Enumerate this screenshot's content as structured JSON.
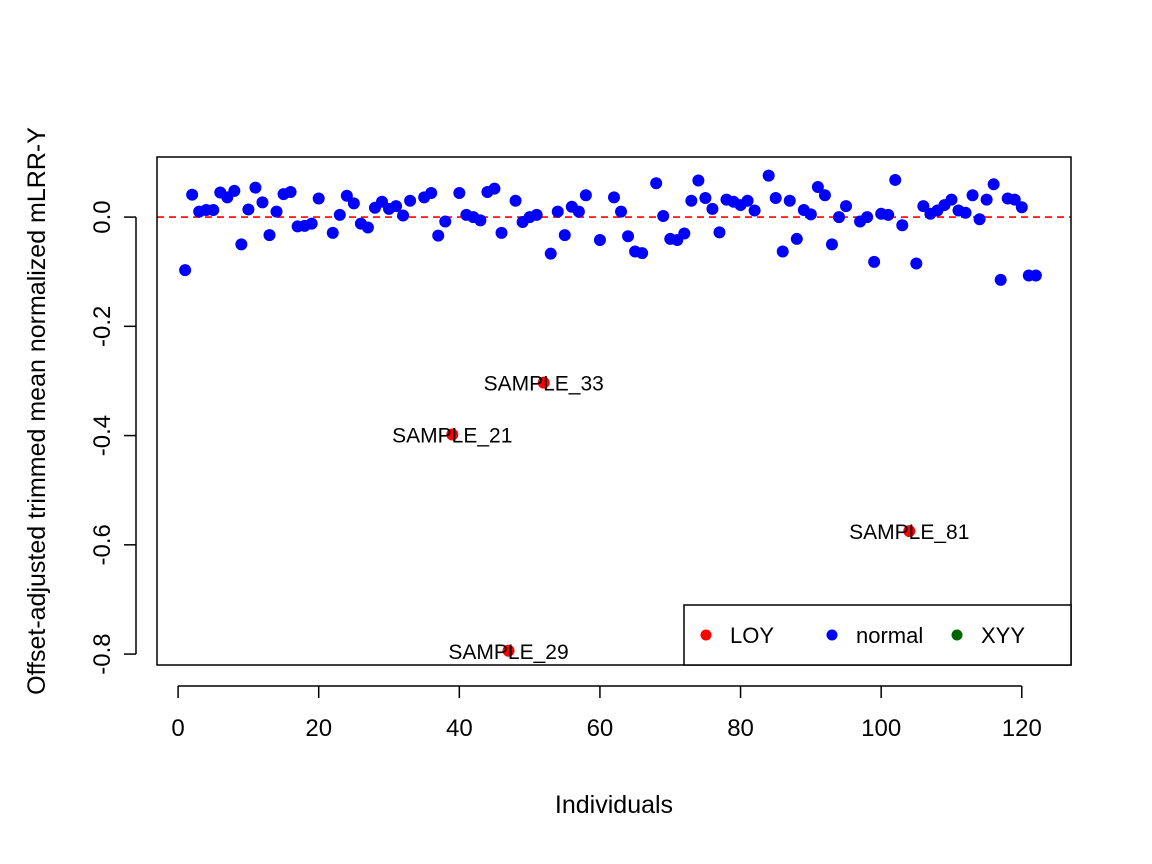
{
  "chart_data": {
    "type": "scatter",
    "xlabel": "Individuals",
    "ylabel": "Offset-adjusted trimmed mean normalized mLRR-Y",
    "xlim": [
      -3,
      127
    ],
    "ylim": [
      -0.82,
      0.11
    ],
    "x_ticks": [
      0,
      20,
      40,
      60,
      80,
      100,
      120
    ],
    "y_ticks": [
      0.0,
      -0.2,
      -0.4,
      -0.6,
      -0.8
    ],
    "x_tick_labels": [
      "0",
      "20",
      "40",
      "60",
      "80",
      "100",
      "120"
    ],
    "y_tick_labels": [
      "0.0",
      "-0.2",
      "-0.4",
      "-0.6",
      "-0.8"
    ],
    "reference_line": {
      "y": 0,
      "color": "#ff0000",
      "style": "dashed"
    },
    "grid": false,
    "legend": {
      "position": "bottom-right",
      "entries": [
        {
          "label": "LOY",
          "color": "#ff0000"
        },
        {
          "label": "normal",
          "color": "#0000ff"
        },
        {
          "label": "XYY",
          "color": "#006400"
        }
      ]
    },
    "series": [
      {
        "name": "LOY",
        "color": "#ff0000",
        "points": [
          {
            "x": 39,
            "y": -0.398,
            "label": "SAMPLE_21"
          },
          {
            "x": 47,
            "y": -0.794,
            "label": "SAMPLE_29"
          },
          {
            "x": 52,
            "y": -0.303,
            "label": "SAMPLE_33"
          },
          {
            "x": 104,
            "y": -0.575,
            "label": "SAMPLE_81"
          }
        ]
      },
      {
        "name": "normal",
        "color": "#0000ff",
        "points": [
          {
            "x": 1,
            "y": -0.097
          },
          {
            "x": 2,
            "y": 0.041
          },
          {
            "x": 3,
            "y": 0.01
          },
          {
            "x": 4,
            "y": 0.013
          },
          {
            "x": 5,
            "y": 0.013
          },
          {
            "x": 6,
            "y": 0.045
          },
          {
            "x": 7,
            "y": 0.036
          },
          {
            "x": 8,
            "y": 0.048
          },
          {
            "x": 9,
            "y": -0.05
          },
          {
            "x": 10,
            "y": 0.014
          },
          {
            "x": 11,
            "y": 0.054
          },
          {
            "x": 12,
            "y": 0.027
          },
          {
            "x": 13,
            "y": -0.033
          },
          {
            "x": 14,
            "y": 0.01
          },
          {
            "x": 15,
            "y": 0.042
          },
          {
            "x": 16,
            "y": 0.046
          },
          {
            "x": 17,
            "y": -0.017
          },
          {
            "x": 18,
            "y": -0.016
          },
          {
            "x": 19,
            "y": -0.012
          },
          {
            "x": 20,
            "y": 0.034
          },
          {
            "x": 22,
            "y": -0.029
          },
          {
            "x": 23,
            "y": 0.004
          },
          {
            "x": 24,
            "y": 0.039
          },
          {
            "x": 25,
            "y": 0.025
          },
          {
            "x": 26,
            "y": -0.012
          },
          {
            "x": 27,
            "y": -0.019
          },
          {
            "x": 28,
            "y": 0.017
          },
          {
            "x": 29,
            "y": 0.028
          },
          {
            "x": 30,
            "y": 0.015
          },
          {
            "x": 31,
            "y": 0.02
          },
          {
            "x": 32,
            "y": 0.003
          },
          {
            "x": 33,
            "y": 0.03
          },
          {
            "x": 35,
            "y": 0.036
          },
          {
            "x": 36,
            "y": 0.044
          },
          {
            "x": 37,
            "y": -0.034
          },
          {
            "x": 38,
            "y": -0.008
          },
          {
            "x": 40,
            "y": 0.044
          },
          {
            "x": 41,
            "y": 0.004
          },
          {
            "x": 42,
            "y": 0.0
          },
          {
            "x": 43,
            "y": -0.006
          },
          {
            "x": 44,
            "y": 0.046
          },
          {
            "x": 45,
            "y": 0.052
          },
          {
            "x": 46,
            "y": -0.029
          },
          {
            "x": 48,
            "y": 0.03
          },
          {
            "x": 49,
            "y": -0.009
          },
          {
            "x": 50,
            "y": 0.0
          },
          {
            "x": 51,
            "y": 0.004
          },
          {
            "x": 53,
            "y": -0.067
          },
          {
            "x": 54,
            "y": 0.01
          },
          {
            "x": 55,
            "y": -0.033
          },
          {
            "x": 56,
            "y": 0.019
          },
          {
            "x": 57,
            "y": 0.01
          },
          {
            "x": 58,
            "y": 0.04
          },
          {
            "x": 60,
            "y": -0.042
          },
          {
            "x": 62,
            "y": 0.036
          },
          {
            "x": 63,
            "y": 0.01
          },
          {
            "x": 64,
            "y": -0.035
          },
          {
            "x": 65,
            "y": -0.063
          },
          {
            "x": 66,
            "y": -0.066
          },
          {
            "x": 68,
            "y": 0.062
          },
          {
            "x": 69,
            "y": 0.002
          },
          {
            "x": 70,
            "y": -0.04
          },
          {
            "x": 71,
            "y": -0.042
          },
          {
            "x": 72,
            "y": -0.03
          },
          {
            "x": 73,
            "y": 0.03
          },
          {
            "x": 74,
            "y": 0.067
          },
          {
            "x": 75,
            "y": 0.035
          },
          {
            "x": 76,
            "y": 0.015
          },
          {
            "x": 77,
            "y": -0.028
          },
          {
            "x": 78,
            "y": 0.032
          },
          {
            "x": 79,
            "y": 0.028
          },
          {
            "x": 80,
            "y": 0.022
          },
          {
            "x": 81,
            "y": 0.03
          },
          {
            "x": 82,
            "y": 0.012
          },
          {
            "x": 84,
            "y": 0.076
          },
          {
            "x": 85,
            "y": 0.035
          },
          {
            "x": 86,
            "y": -0.063
          },
          {
            "x": 87,
            "y": 0.03
          },
          {
            "x": 88,
            "y": -0.04
          },
          {
            "x": 89,
            "y": 0.013
          },
          {
            "x": 90,
            "y": 0.005
          },
          {
            "x": 91,
            "y": 0.055
          },
          {
            "x": 92,
            "y": 0.04
          },
          {
            "x": 93,
            "y": -0.05
          },
          {
            "x": 94,
            "y": 0.0
          },
          {
            "x": 95,
            "y": 0.02
          },
          {
            "x": 97,
            "y": -0.008
          },
          {
            "x": 98,
            "y": 0.0
          },
          {
            "x": 99,
            "y": -0.082
          },
          {
            "x": 100,
            "y": 0.006
          },
          {
            "x": 101,
            "y": 0.004
          },
          {
            "x": 102,
            "y": 0.068
          },
          {
            "x": 103,
            "y": -0.015
          },
          {
            "x": 105,
            "y": -0.085
          },
          {
            "x": 106,
            "y": 0.02
          },
          {
            "x": 107,
            "y": 0.006
          },
          {
            "x": 108,
            "y": 0.012
          },
          {
            "x": 109,
            "y": 0.022
          },
          {
            "x": 110,
            "y": 0.032
          },
          {
            "x": 111,
            "y": 0.012
          },
          {
            "x": 112,
            "y": 0.008
          },
          {
            "x": 113,
            "y": 0.04
          },
          {
            "x": 114,
            "y": -0.004
          },
          {
            "x": 115,
            "y": 0.032
          },
          {
            "x": 116,
            "y": 0.06
          },
          {
            "x": 117,
            "y": -0.115
          },
          {
            "x": 118,
            "y": 0.034
          },
          {
            "x": 119,
            "y": 0.032
          },
          {
            "x": 120,
            "y": 0.018
          },
          {
            "x": 121,
            "y": -0.107
          },
          {
            "x": 122,
            "y": -0.107
          }
        ]
      },
      {
        "name": "XYY",
        "color": "#006400",
        "points": []
      }
    ]
  }
}
